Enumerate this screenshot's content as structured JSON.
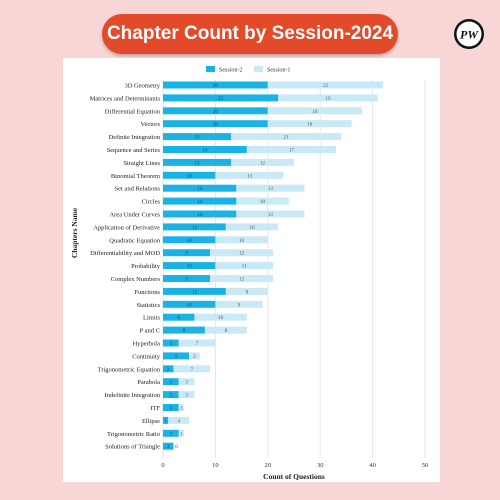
{
  "page": {
    "title": "Chapter Count by Session-2024",
    "logo_text": "PW"
  },
  "colors": {
    "background": "#f9d6d6",
    "title_bg": "#e24a2a",
    "session2": "#1bb3e6",
    "session1": "#c9e9f7"
  },
  "chart_data": {
    "type": "bar",
    "orientation": "horizontal",
    "stacked": true,
    "xlabel": "Count of Questions",
    "ylabel": "Chapters Name",
    "xlim": [
      0,
      50
    ],
    "xticks": [
      0,
      10,
      20,
      30,
      40,
      50
    ],
    "grid": "vertical",
    "legend_position": "top",
    "categories": [
      "3D Geometry",
      "Matrices and Determinants",
      "Differential Equation",
      "Vectors",
      "Definite Integration",
      "Sequence and Series",
      "Straight Lines",
      "Binomial Theorem",
      "Set and Relations",
      "Circles",
      "Area Under Curves",
      "Application of Derivative",
      "Quadratic Equation",
      "Differentiability and MOD",
      "Probability",
      "Complex Numbers",
      "Functions",
      "Statistics",
      "Limits",
      "P and C",
      "Hyperbola",
      "Continuity",
      "Trigonometric Equation",
      "Parabola",
      "Indefinite Integration",
      "ITF",
      "Ellipse",
      "Trigonometric Ratio",
      "Solutions of Triangle"
    ],
    "series": [
      {
        "name": "Session-2",
        "values": [
          20,
          22,
          20,
          20,
          13,
          16,
          13,
          10,
          14,
          14,
          14,
          12,
          10,
          9,
          10,
          9,
          12,
          10,
          6,
          8,
          3,
          5,
          2,
          3,
          3,
          3,
          1,
          3,
          2
        ]
      },
      {
        "name": "Session-1",
        "values": [
          22,
          19,
          18,
          16,
          21,
          17,
          12,
          13,
          13,
          10,
          13,
          10,
          10,
          12,
          11,
          12,
          8,
          9,
          10,
          8,
          7,
          2,
          7,
          3,
          3,
          1,
          4,
          1,
          0
        ]
      }
    ]
  }
}
